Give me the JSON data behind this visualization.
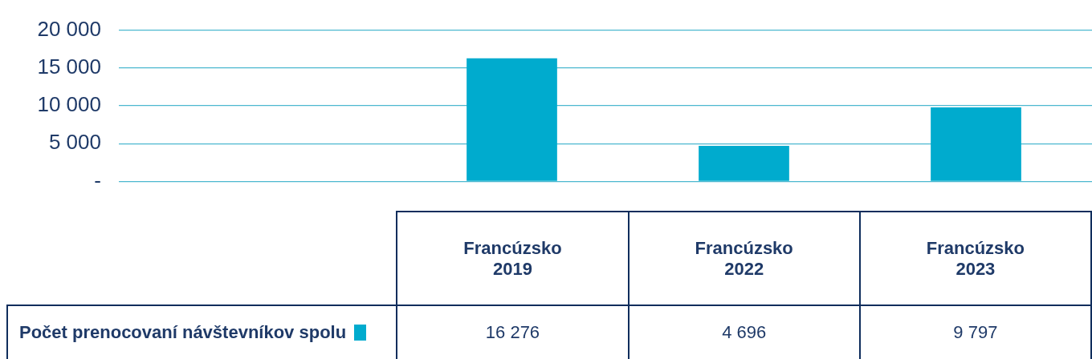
{
  "chart_data": {
    "type": "bar",
    "categories": [
      null,
      "Francúzsko 2019",
      "Francúzsko 2022",
      "Francúzsko 2023"
    ],
    "series": [
      {
        "name": "Počet prenocovaní návštevníkov spolu",
        "color": "#00abce",
        "values": [
          null,
          16276,
          4696,
          9797
        ],
        "value_labels": [
          null,
          "16 276",
          "4 696",
          "9 797"
        ]
      }
    ],
    "ylim": [
      0,
      20000
    ],
    "yticks": [
      {
        "value": 0,
        "label": "-"
      },
      {
        "value": 5000,
        "label": "5 000"
      },
      {
        "value": 10000,
        "label": "10 000"
      },
      {
        "value": 15000,
        "label": "15 000"
      },
      {
        "value": 20000,
        "label": "20 000"
      }
    ],
    "grid": "y",
    "legend": "bottom left"
  }
}
